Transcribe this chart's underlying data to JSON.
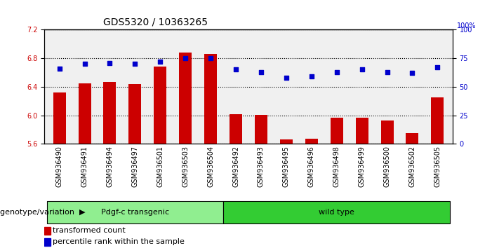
{
  "title": "GDS5320 / 10363265",
  "categories": [
    "GSM936490",
    "GSM936491",
    "GSM936494",
    "GSM936497",
    "GSM936501",
    "GSM936503",
    "GSM936504",
    "GSM936492",
    "GSM936493",
    "GSM936495",
    "GSM936496",
    "GSM936498",
    "GSM936499",
    "GSM936500",
    "GSM936502",
    "GSM936505"
  ],
  "bar_values": [
    6.32,
    6.45,
    6.47,
    6.44,
    6.68,
    6.88,
    6.86,
    6.02,
    6.01,
    5.66,
    5.67,
    5.97,
    5.97,
    5.93,
    5.75,
    6.25
  ],
  "scatter_values": [
    66,
    70,
    71,
    70,
    72,
    75,
    75,
    65,
    63,
    58,
    59,
    63,
    65,
    63,
    62,
    67
  ],
  "ylim_left": [
    5.6,
    7.2
  ],
  "ylim_right": [
    0,
    100
  ],
  "yticks_left": [
    5.6,
    6.0,
    6.4,
    6.8,
    7.2
  ],
  "yticks_right": [
    0,
    25,
    50,
    75,
    100
  ],
  "group1_label": "Pdgf-c transgenic",
  "group2_label": "wild type",
  "group1_count": 7,
  "group2_count": 9,
  "bar_color": "#cc0000",
  "scatter_color": "#0000cc",
  "group1_color": "#90ee90",
  "group2_color": "#33cc33",
  "bar_bottom": 5.6,
  "legend_bar_label": "transformed count",
  "legend_scatter_label": "percentile rank within the sample",
  "bg_color": "#ffffff",
  "plot_area_bg": "#f0f0f0",
  "title_fontsize": 10,
  "tick_fontsize": 7,
  "label_fontsize": 8
}
